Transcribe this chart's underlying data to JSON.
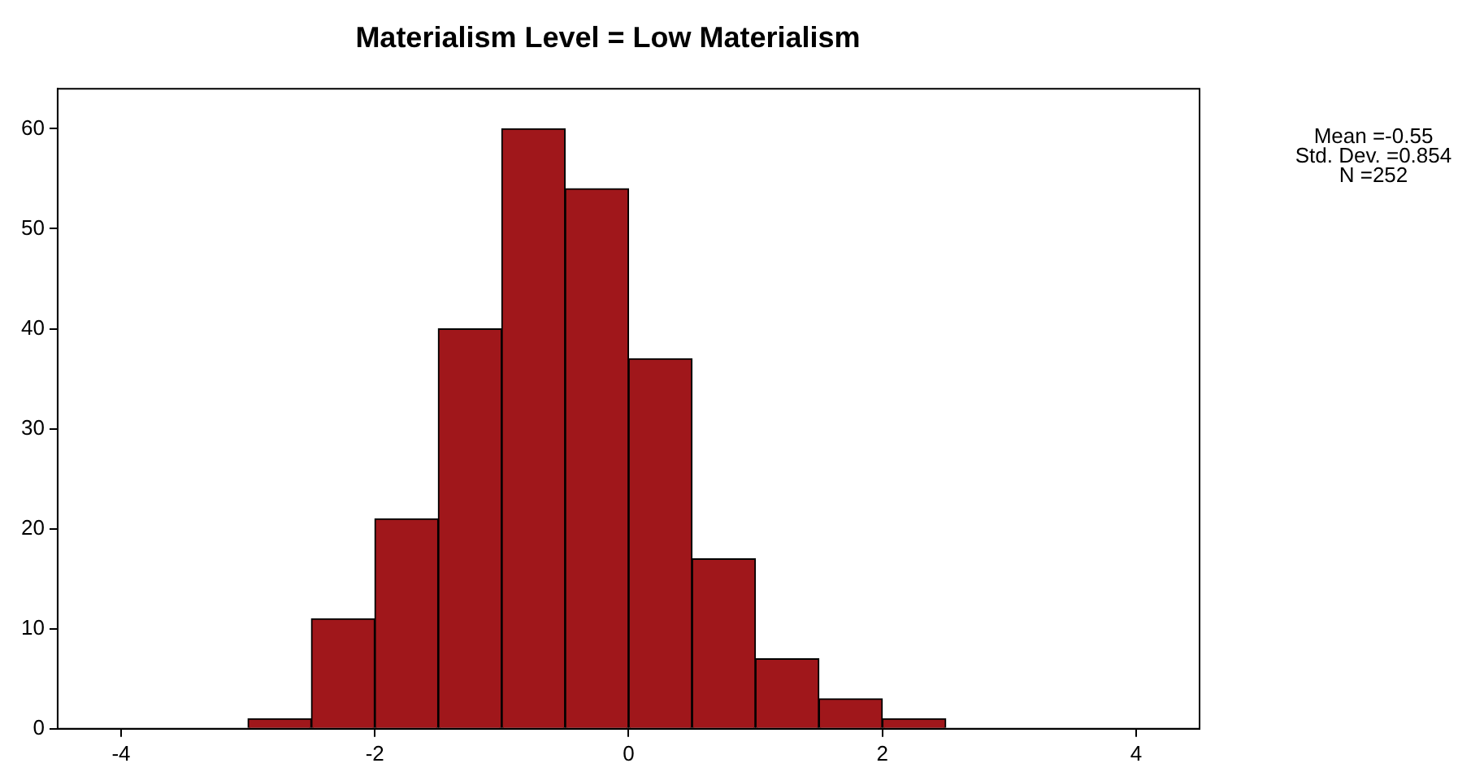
{
  "chart_data": {
    "type": "histogram",
    "title": "Materialism Level = Low Materialism",
    "bins": [
      -3,
      -2.5,
      -2,
      -1.5,
      -1,
      -0.5,
      0,
      0.5,
      1,
      1.5,
      2,
      2.5
    ],
    "values": [
      1,
      11,
      21,
      40,
      60,
      54,
      37,
      17,
      7,
      3,
      1
    ],
    "color": "#a0171b",
    "xlim": [
      -4.5,
      4.5
    ],
    "xticks": [
      -4,
      -2,
      0,
      2,
      4
    ],
    "ylim": [
      0,
      64
    ],
    "yticks": [
      0,
      10,
      20,
      30,
      40,
      50,
      60
    ],
    "grid": false,
    "legend": false,
    "annotations": [
      "Mean =-0.55",
      "Std. Dev. =0.854",
      "N =252"
    ]
  }
}
